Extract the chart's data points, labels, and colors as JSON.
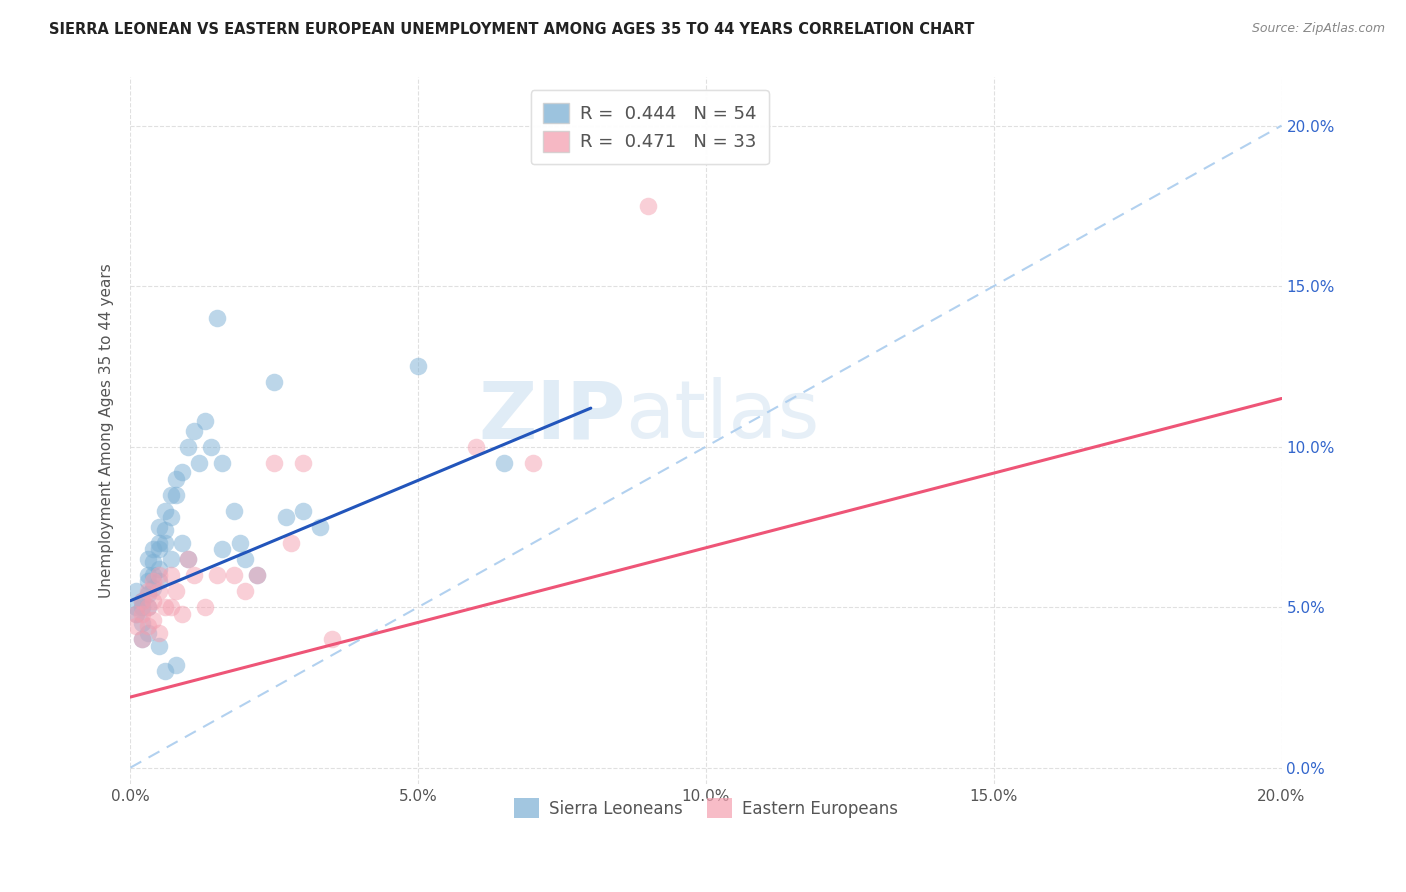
{
  "title": "SIERRA LEONEAN VS EASTERN EUROPEAN UNEMPLOYMENT AMONG AGES 35 TO 44 YEARS CORRELATION CHART",
  "source": "Source: ZipAtlas.com",
  "ylabel": "Unemployment Among Ages 35 to 44 years",
  "xlabel_ticks": [
    "0.0%",
    "5.0%",
    "10.0%",
    "15.0%",
    "20.0%"
  ],
  "right_yticks": [
    "0.0%",
    "5.0%",
    "10.0%",
    "15.0%",
    "20.0%"
  ],
  "xlim": [
    0.0,
    0.2
  ],
  "ylim": [
    -0.005,
    0.215
  ],
  "legend1_r": "0.444",
  "legend1_n": "54",
  "legend2_r": "0.471",
  "legend2_n": "33",
  "blue_scatter": "#7BAFD4",
  "pink_scatter": "#F4A0B0",
  "trend_blue": "#2255BB",
  "trend_pink": "#EE5577",
  "dashed_color": "#AACCEE",
  "blue_line_x0": 0.0,
  "blue_line_y0": 0.052,
  "blue_line_x1": 0.08,
  "blue_line_y1": 0.112,
  "pink_line_x0": 0.0,
  "pink_line_y0": 0.022,
  "pink_line_x1": 0.2,
  "pink_line_y1": 0.115,
  "sierra_leonean_x": [
    0.001,
    0.001,
    0.001,
    0.002,
    0.002,
    0.002,
    0.002,
    0.003,
    0.003,
    0.003,
    0.003,
    0.003,
    0.003,
    0.004,
    0.004,
    0.004,
    0.004,
    0.005,
    0.005,
    0.005,
    0.005,
    0.005,
    0.005,
    0.006,
    0.006,
    0.006,
    0.006,
    0.007,
    0.007,
    0.007,
    0.008,
    0.008,
    0.008,
    0.009,
    0.009,
    0.01,
    0.01,
    0.011,
    0.012,
    0.013,
    0.014,
    0.015,
    0.016,
    0.016,
    0.018,
    0.019,
    0.02,
    0.022,
    0.025,
    0.027,
    0.03,
    0.033,
    0.05,
    0.065
  ],
  "sierra_leonean_y": [
    0.048,
    0.05,
    0.055,
    0.05,
    0.045,
    0.052,
    0.04,
    0.06,
    0.065,
    0.058,
    0.054,
    0.05,
    0.042,
    0.068,
    0.064,
    0.06,
    0.056,
    0.075,
    0.07,
    0.068,
    0.062,
    0.058,
    0.038,
    0.08,
    0.074,
    0.07,
    0.03,
    0.085,
    0.078,
    0.065,
    0.09,
    0.085,
    0.032,
    0.092,
    0.07,
    0.1,
    0.065,
    0.105,
    0.095,
    0.108,
    0.1,
    0.14,
    0.095,
    0.068,
    0.08,
    0.07,
    0.065,
    0.06,
    0.12,
    0.078,
    0.08,
    0.075,
    0.125,
    0.095
  ],
  "eastern_european_x": [
    0.001,
    0.001,
    0.002,
    0.002,
    0.002,
    0.003,
    0.003,
    0.003,
    0.004,
    0.004,
    0.004,
    0.005,
    0.005,
    0.005,
    0.006,
    0.007,
    0.007,
    0.008,
    0.009,
    0.01,
    0.011,
    0.013,
    0.015,
    0.018,
    0.02,
    0.022,
    0.025,
    0.028,
    0.03,
    0.035,
    0.06,
    0.07,
    0.09
  ],
  "eastern_european_y": [
    0.048,
    0.044,
    0.052,
    0.048,
    0.04,
    0.055,
    0.05,
    0.044,
    0.058,
    0.052,
    0.046,
    0.06,
    0.055,
    0.042,
    0.05,
    0.06,
    0.05,
    0.055,
    0.048,
    0.065,
    0.06,
    0.05,
    0.06,
    0.06,
    0.055,
    0.06,
    0.095,
    0.07,
    0.095,
    0.04,
    0.1,
    0.095,
    0.175
  ],
  "watermark_zip": "ZIP",
  "watermark_atlas": "atlas"
}
